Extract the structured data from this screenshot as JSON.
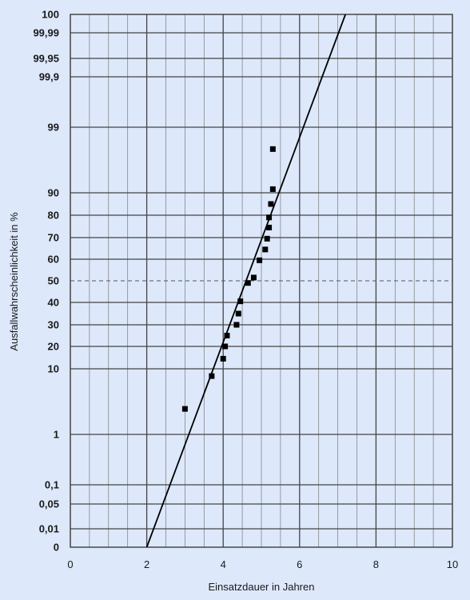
{
  "chart_data": {
    "type": "scatter",
    "title": "",
    "xlabel": "Einsatzdauer in Jahren",
    "ylabel": "Ausfallwahrscheinlichkeit in %",
    "xlim": [
      0,
      10
    ],
    "x_ticks": [
      "0",
      "2",
      "4",
      "6",
      "8",
      "10"
    ],
    "x_ticks_values": [
      0,
      2,
      4,
      6,
      8,
      10
    ],
    "y_scale": "probability",
    "y_ticks": [
      {
        "label": "100",
        "value": 100
      },
      {
        "label": "99,99",
        "value": 99.99
      },
      {
        "label": "99,95",
        "value": 99.95
      },
      {
        "label": "99,9",
        "value": 99.9
      },
      {
        "label": "99",
        "value": 99
      },
      {
        "label": "90",
        "value": 90
      },
      {
        "label": "80",
        "value": 80
      },
      {
        "label": "70",
        "value": 70
      },
      {
        "label": "60",
        "value": 60
      },
      {
        "label": "50",
        "value": 50
      },
      {
        "label": "40",
        "value": 40
      },
      {
        "label": "30",
        "value": 30
      },
      {
        "label": "20",
        "value": 20
      },
      {
        "label": "10",
        "value": 10
      },
      {
        "label": "1",
        "value": 1
      },
      {
        "label": "0,1",
        "value": 0.1
      },
      {
        "label": "0,05",
        "value": 0.05
      },
      {
        "label": "0,01",
        "value": 0.01
      },
      {
        "label": "0",
        "value": 0
      }
    ],
    "grid": true,
    "reference_line_value": 50,
    "series": [
      {
        "type": "scatter",
        "points": [
          {
            "x": 3.0,
            "y": 4.5
          },
          {
            "x": 3.7,
            "y": 9.0
          },
          {
            "x": 4.0,
            "y": 14.5
          },
          {
            "x": 4.05,
            "y": 20.0
          },
          {
            "x": 4.1,
            "y": 25.0
          },
          {
            "x": 4.35,
            "y": 30.0
          },
          {
            "x": 4.4,
            "y": 35.0
          },
          {
            "x": 4.45,
            "y": 40.5
          },
          {
            "x": 4.65,
            "y": 49.0
          },
          {
            "x": 4.8,
            "y": 51.5
          },
          {
            "x": 4.95,
            "y": 59.5
          },
          {
            "x": 5.1,
            "y": 64.5
          },
          {
            "x": 5.15,
            "y": 69.5
          },
          {
            "x": 5.2,
            "y": 74.5
          },
          {
            "x": 5.2,
            "y": 79.0
          },
          {
            "x": 5.25,
            "y": 85.0
          },
          {
            "x": 5.3,
            "y": 90.5
          },
          {
            "x": 5.3,
            "y": 96.0
          }
        ]
      },
      {
        "type": "line",
        "points": [
          {
            "x": 2.0,
            "y": 0
          },
          {
            "x": 7.2,
            "y": 100
          }
        ]
      }
    ],
    "colors": {
      "background": "#dde8fb",
      "grid": "#444444",
      "markers": "#000000",
      "fit_line": "#000000"
    }
  }
}
